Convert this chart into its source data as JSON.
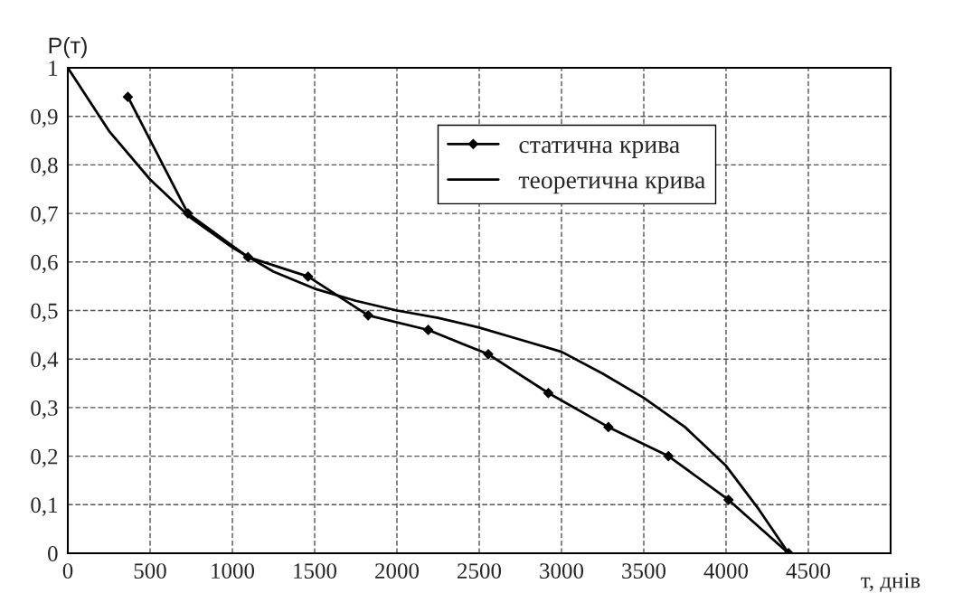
{
  "chart_data": {
    "type": "line",
    "xlabel": "т, днів",
    "ylabel": "P(т)",
    "xlim": [
      0,
      5000
    ],
    "xticks": [
      0,
      500,
      1000,
      1500,
      2000,
      2500,
      3000,
      3500,
      4000,
      4500
    ],
    "ylim": [
      0,
      1
    ],
    "yticks": [
      0,
      {
        "value": 0.1,
        "label": "0,1"
      },
      {
        "value": 0.2,
        "label": "0,2"
      },
      {
        "value": 0.3,
        "label": "0,3"
      },
      {
        "value": 0.4,
        "label": "0,4"
      },
      {
        "value": 0.5,
        "label": "0,5"
      },
      {
        "value": 0.6,
        "label": "0,6"
      },
      {
        "value": 0.7,
        "label": "0,7"
      },
      {
        "value": 0.8,
        "label": "0,8"
      },
      {
        "value": 0.9,
        "label": "0,9"
      },
      1
    ],
    "grid": true,
    "legend": "top right",
    "series": [
      {
        "name": "статична крива",
        "color": "#000000",
        "marker": "diamond",
        "x": [
          365,
          730,
          1095,
          1460,
          1825,
          2190,
          2555,
          2920,
          3285,
          3650,
          4015,
          4380
        ],
        "values": [
          0.94,
          0.7,
          0.61,
          0.57,
          0.49,
          0.46,
          0.41,
          0.33,
          0.26,
          0.2,
          0.11,
          0.0
        ]
      },
      {
        "name": "теоретична крива",
        "color": "#000000",
        "marker": "none",
        "x": [
          0,
          250,
          500,
          750,
          1000,
          1250,
          1500,
          1750,
          2000,
          2250,
          2500,
          2750,
          3000,
          3250,
          3500,
          3750,
          4000,
          4200,
          4380
        ],
        "values": [
          1.0,
          0.87,
          0.77,
          0.69,
          0.63,
          0.58,
          0.545,
          0.52,
          0.5,
          0.485,
          0.465,
          0.44,
          0.415,
          0.37,
          0.32,
          0.26,
          0.18,
          0.09,
          0.0
        ]
      }
    ]
  }
}
